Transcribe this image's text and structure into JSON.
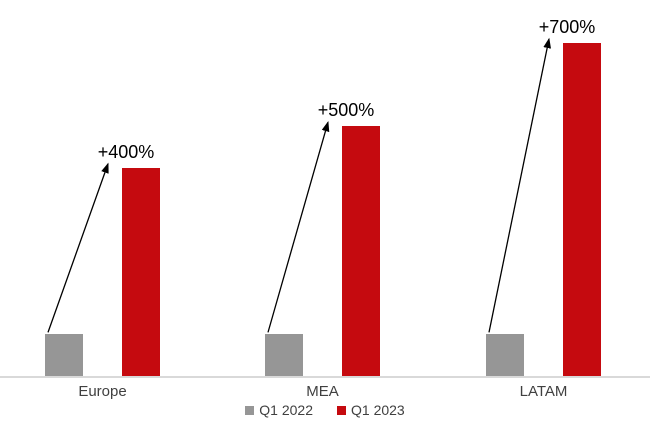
{
  "chart_data": {
    "type": "bar",
    "title": "",
    "categories": [
      "Europe",
      "MEA",
      "LATAM"
    ],
    "series": [
      {
        "name": "Q1 2022",
        "color": "#969696",
        "values": [
          100,
          100,
          100
        ]
      },
      {
        "name": "Q1 2023",
        "color": "#C50A0F",
        "values": [
          500,
          600,
          800
        ]
      }
    ],
    "annotations": [
      "+400%",
      "+500%",
      "+700%"
    ],
    "ylim": [
      0,
      800
    ],
    "grid": false,
    "y_axis_visible": false,
    "legend_position": "bottom",
    "axis_line_color": "#D9D9D9",
    "category_text_color": "#404040",
    "annotation_text_color": "#000000",
    "arrow_color": "#000000",
    "background": "#FFFFFF"
  }
}
